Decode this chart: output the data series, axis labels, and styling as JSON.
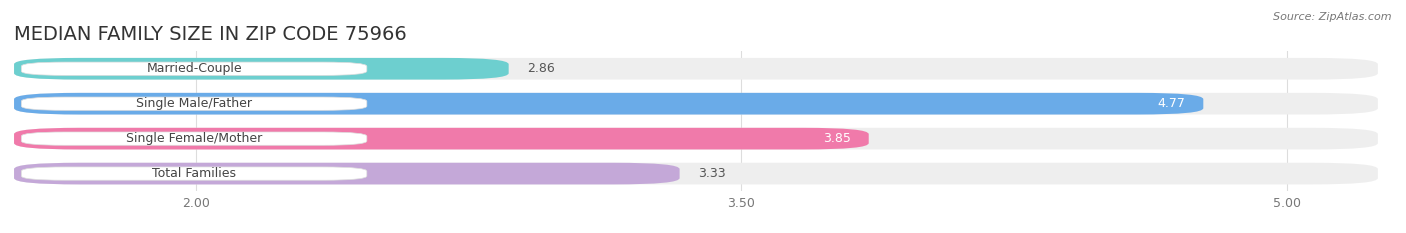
{
  "title": "MEDIAN FAMILY SIZE IN ZIP CODE 75966",
  "source": "Source: ZipAtlas.com",
  "categories": [
    "Married-Couple",
    "Single Male/Father",
    "Single Female/Mother",
    "Total Families"
  ],
  "values": [
    2.86,
    4.77,
    3.85,
    3.33
  ],
  "bar_colors": [
    "#6dcfcf",
    "#6aabe8",
    "#f07aaa",
    "#c4a8d8"
  ],
  "bar_bg_colors": [
    "#eeeeee",
    "#eeeeee",
    "#eeeeee",
    "#eeeeee"
  ],
  "value_colors": [
    "#555555",
    "#ffffff",
    "#ffffff",
    "#555555"
  ],
  "xlim_left": 1.5,
  "xlim_right": 5.25,
  "xticks": [
    2.0,
    3.5,
    5.0
  ],
  "xtick_labels": [
    "2.00",
    "3.50",
    "5.00"
  ],
  "title_fontsize": 14,
  "label_fontsize": 9,
  "value_fontsize": 9,
  "bar_height": 0.62,
  "fig_width": 14.06,
  "fig_height": 2.33,
  "bg_color": "#ffffff",
  "grid_color": "#dddddd",
  "bar_gap": 0.18
}
